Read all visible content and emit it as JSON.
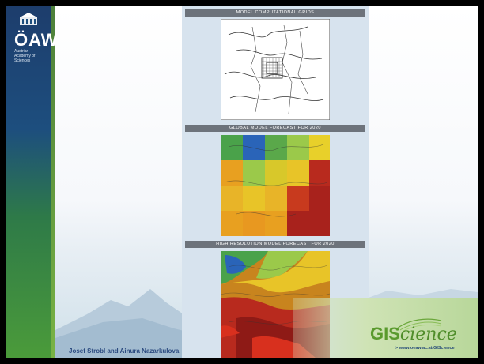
{
  "logo": {
    "title": "ÖAW",
    "subtitle": "Austrian Academy of Sciences"
  },
  "panels": [
    {
      "label": "MODEL COMPUTATIONAL GRIDS"
    },
    {
      "label": "GLOBAL MODEL FORECAST FOR 2020"
    },
    {
      "label": "HIGH RESOLUTION MODEL FORECAST FOR 2020"
    }
  ],
  "branding": {
    "gis_prefix": "GIS",
    "gis_suffix": "cience",
    "url": "> www.oeaw.ac.at/GIScience"
  },
  "footer": {
    "authors": "Josef Strobl and Ainura Nazarkulova"
  },
  "colors": {
    "blue": "#1d4e7e",
    "green": "#5a9a2e"
  }
}
